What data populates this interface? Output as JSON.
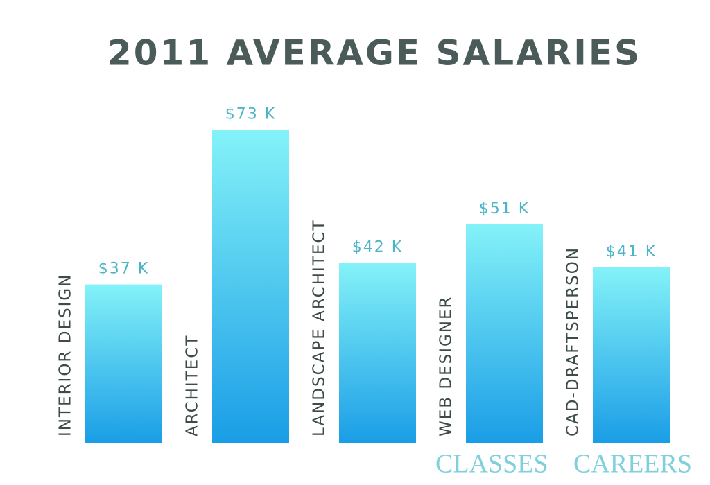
{
  "chart_data": {
    "type": "bar",
    "title": "2011 AVERAGE SALARIES",
    "categories": [
      "INTERIOR DESIGN",
      "ARCHITECT",
      "LANDSCAPE ARCHITECT",
      "WEB DESIGNER",
      "CAD-DRAFTSPERSON"
    ],
    "values": [
      37,
      73,
      42,
      51,
      41
    ],
    "value_labels": [
      "$37 K",
      "$73 K",
      "$42 K",
      "$51 K",
      "$41 K"
    ],
    "gradient": [
      "#84f2f8",
      "#1a9de6"
    ],
    "source": [
      "CLASSES",
      "CAREERS"
    ]
  }
}
